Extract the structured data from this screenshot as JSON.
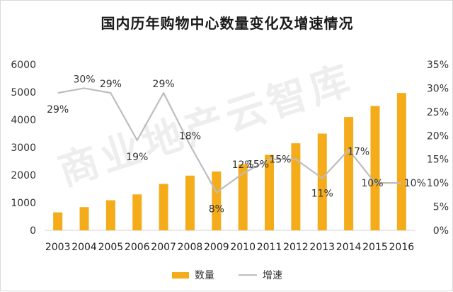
{
  "chart_data": {
    "type": "bar",
    "title": "国内历年购物中心数量变化及增速情况",
    "categories": [
      "2003",
      "2004",
      "2005",
      "2006",
      "2007",
      "2008",
      "2009",
      "2010",
      "2011",
      "2012",
      "2013",
      "2014",
      "2015",
      "2016"
    ],
    "series": [
      {
        "name": "数量",
        "type": "bar",
        "axis": "left",
        "values": [
          650,
          840,
          1090,
          1300,
          1680,
          1980,
          2130,
          2390,
          2730,
          3150,
          3500,
          4100,
          4500,
          4970
        ]
      },
      {
        "name": "增速",
        "type": "line",
        "axis": "right",
        "values": [
          29,
          30,
          29,
          19,
          29,
          18,
          8,
          12,
          15,
          15,
          11,
          17,
          10,
          10
        ],
        "labels": [
          "29%",
          "30%",
          "29%",
          "19%",
          "29%",
          "18%",
          "8%",
          "12%",
          "15%",
          "15%",
          "11%",
          "17%",
          "10%",
          "10%"
        ]
      }
    ],
    "y_left": {
      "min": 0,
      "max": 6000,
      "ticks": [
        "0",
        "1000",
        "2000",
        "3000",
        "4000",
        "5000",
        "6000"
      ]
    },
    "y_right": {
      "min": 0,
      "max": 35,
      "ticks": [
        "0%",
        "5%",
        "10%",
        "15%",
        "20%",
        "25%",
        "30%",
        "35%"
      ]
    },
    "legend_position": "bottom",
    "grid": false,
    "colors": {
      "bar": "#F5AC1B",
      "line": "#BDBDBD"
    }
  },
  "watermark": "商业地产云智库"
}
